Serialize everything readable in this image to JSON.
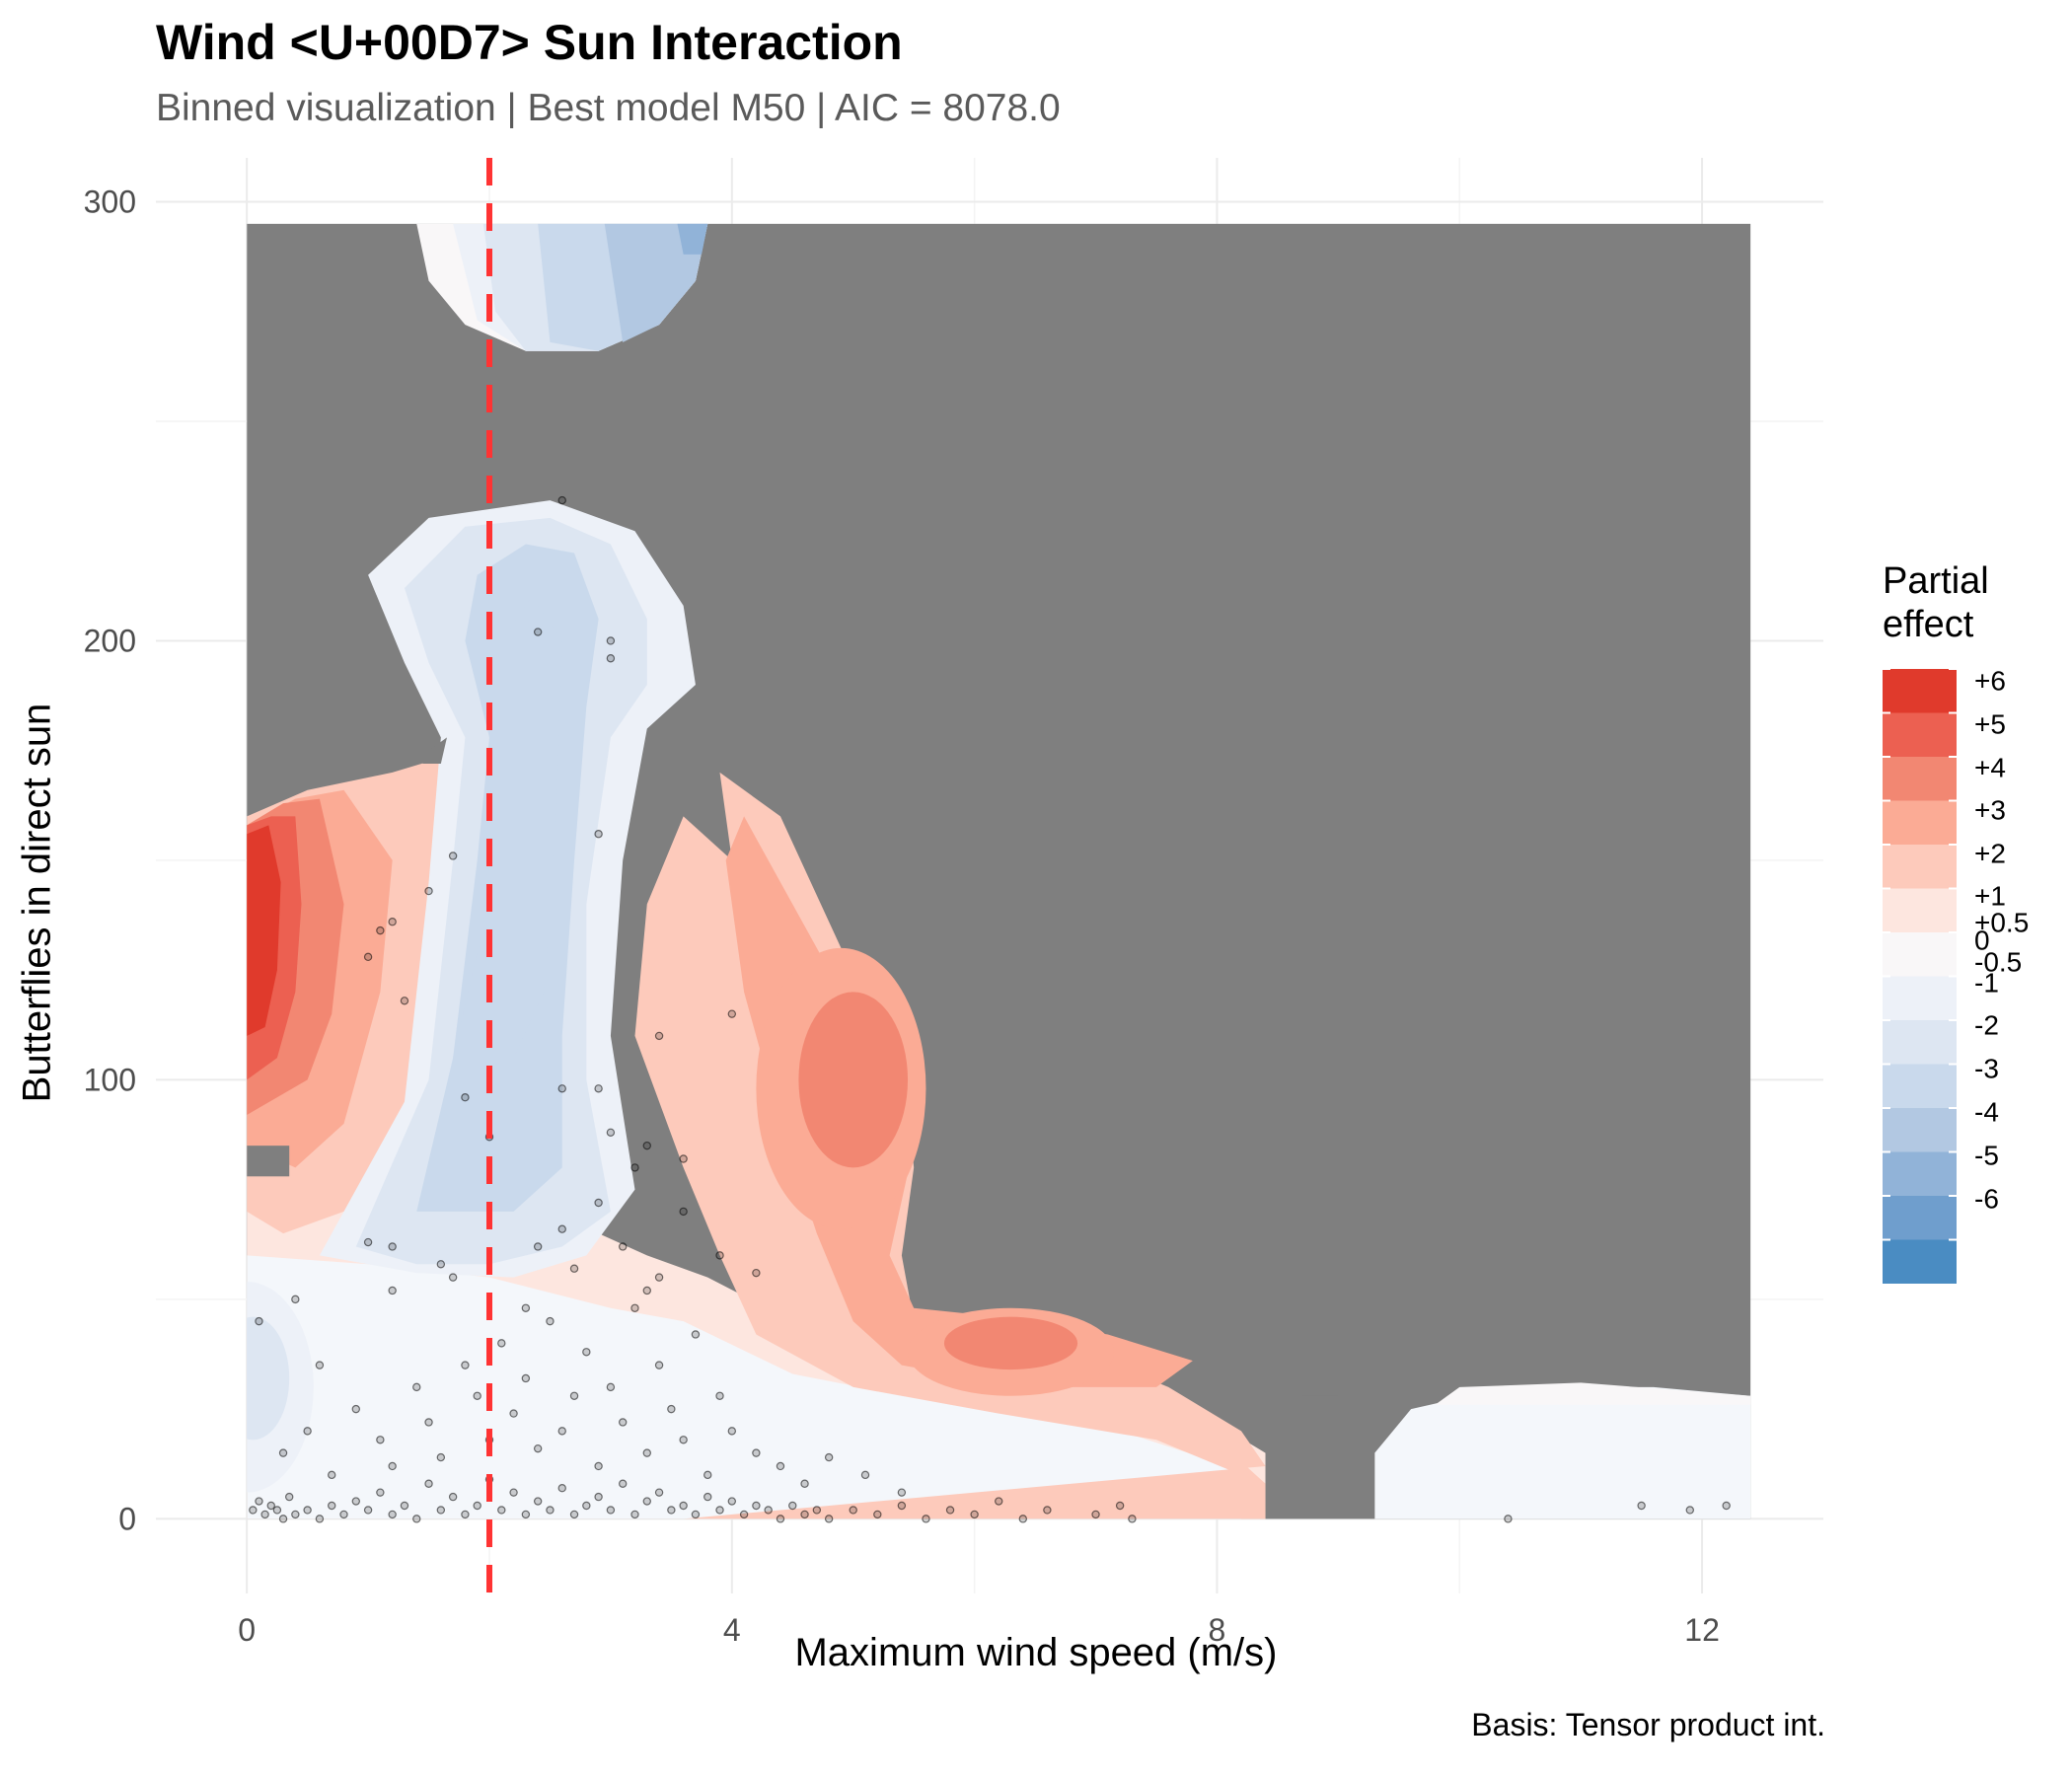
{
  "chart_data": {
    "type": "heatmap",
    "title": "Wind <U+00D7> Sun Interaction",
    "subtitle": "Binned visualization | Best model M50 | AIC = 8078.0",
    "caption": "Basis: Tensor product int.",
    "xlabel": "Maximum wind speed (m/s)",
    "ylabel": "Butterflies in direct sun",
    "xlim": [
      -0.75,
      13.0
    ],
    "ylim": [
      -17,
      310
    ],
    "xticks": [
      0,
      4,
      8,
      12
    ],
    "yticks": [
      0,
      100,
      200,
      300
    ],
    "x_minor_grid": [
      2,
      6,
      10
    ],
    "y_minor_grid": [
      50,
      150,
      250
    ],
    "grid": true,
    "reference_line": {
      "x": 2.0,
      "style": "dashed",
      "color": "#ff3333"
    },
    "surface_extent": {
      "x": [
        0,
        12.4
      ],
      "y": [
        0,
        295
      ]
    },
    "masked_color": "#7f7f7f",
    "legend": {
      "title": "Partial effect",
      "position": "right",
      "labels": [
        "+6",
        "+5",
        "+4",
        "+3",
        "+2",
        "+1",
        "+0.5",
        "0",
        "-0.5",
        "-1",
        "-2",
        "-3",
        "-4",
        "-5",
        "-6"
      ],
      "colors": [
        "#e03a2c",
        "#ec6051",
        "#f28772",
        "#fbab95",
        "#fdcabb",
        "#fde6df",
        "#f9f7f8",
        "#edf1f8",
        "#dde6f2",
        "#c9d9ec",
        "#b2c8e2",
        "#91b3d8",
        "#6f9ecd",
        "#4a8cc2"
      ]
    },
    "contour_regions": [
      {
        "shape": "ellipse",
        "x": 0.0,
        "y": 30,
        "rx": 0.55,
        "ry": 24,
        "level": -1
      },
      {
        "shape": "ellipse",
        "x": 2.6,
        "y": 185,
        "rx": 1.3,
        "ry": 90,
        "level": -1
      },
      {
        "shape": "ellipse",
        "x": 2.25,
        "y": 175,
        "rx": 0.55,
        "ry": 72,
        "level": -2
      },
      {
        "shape": "ellipse",
        "x": 2.7,
        "y": 285,
        "rx": 0.75,
        "ry": 22,
        "level": -2
      },
      {
        "shape": "ellipse",
        "x": 3.2,
        "y": 285,
        "rx": 0.35,
        "ry": 20,
        "level": -3
      },
      {
        "shape": "ellipse",
        "x": 3.6,
        "y": 290,
        "rx": 0.1,
        "ry": 8,
        "level": -4
      },
      {
        "shape": "ellipse",
        "x": 0.2,
        "y": 118,
        "rx": 0.55,
        "ry": 45,
        "level": 5
      },
      {
        "shape": "ellipse",
        "x": 0.05,
        "y": 125,
        "rx": 0.32,
        "ry": 30,
        "level": 6
      },
      {
        "shape": "ellipse",
        "x": 4.9,
        "y": 100,
        "rx": 0.6,
        "ry": 28,
        "level": 4
      },
      {
        "shape": "ellipse",
        "x": 6.3,
        "y": 38,
        "rx": 0.8,
        "ry": 10,
        "level": 3
      }
    ],
    "points": [
      [
        0.05,
        2
      ],
      [
        0.1,
        4
      ],
      [
        0.15,
        1
      ],
      [
        0.2,
        3
      ],
      [
        0.25,
        2
      ],
      [
        0.3,
        0
      ],
      [
        0.35,
        5
      ],
      [
        0.4,
        1
      ],
      [
        0.5,
        2
      ],
      [
        0.6,
        0
      ],
      [
        0.7,
        3
      ],
      [
        0.8,
        1
      ],
      [
        0.9,
        4
      ],
      [
        1.0,
        2
      ],
      [
        1.1,
        6
      ],
      [
        1.2,
        1
      ],
      [
        1.3,
        3
      ],
      [
        1.4,
        0
      ],
      [
        1.5,
        8
      ],
      [
        1.6,
        2
      ],
      [
        1.7,
        5
      ],
      [
        1.8,
        1
      ],
      [
        1.9,
        3
      ],
      [
        2.0,
        9
      ],
      [
        2.1,
        2
      ],
      [
        2.2,
        6
      ],
      [
        2.3,
        1
      ],
      [
        2.4,
        4
      ],
      [
        2.5,
        2
      ],
      [
        2.6,
        7
      ],
      [
        2.7,
        1
      ],
      [
        2.8,
        3
      ],
      [
        2.9,
        5
      ],
      [
        3.0,
        2
      ],
      [
        3.1,
        8
      ],
      [
        3.2,
        1
      ],
      [
        3.3,
        4
      ],
      [
        3.4,
        6
      ],
      [
        3.5,
        2
      ],
      [
        3.6,
        3
      ],
      [
        3.7,
        1
      ],
      [
        3.8,
        5
      ],
      [
        3.9,
        2
      ],
      [
        4.0,
        4
      ],
      [
        4.1,
        1
      ],
      [
        4.2,
        3
      ],
      [
        4.3,
        2
      ],
      [
        4.4,
        0
      ],
      [
        4.5,
        3
      ],
      [
        4.6,
        1
      ],
      [
        4.7,
        2
      ],
      [
        4.8,
        0
      ],
      [
        5.0,
        2
      ],
      [
        5.2,
        1
      ],
      [
        5.4,
        3
      ],
      [
        5.6,
        0
      ],
      [
        5.8,
        2
      ],
      [
        6.0,
        1
      ],
      [
        6.2,
        4
      ],
      [
        6.4,
        0
      ],
      [
        6.6,
        2
      ],
      [
        7.0,
        1
      ],
      [
        7.2,
        3
      ],
      [
        7.3,
        0
      ],
      [
        10.4,
        0
      ],
      [
        11.5,
        3
      ],
      [
        11.9,
        2
      ],
      [
        12.2,
        3
      ],
      [
        0.3,
        15
      ],
      [
        0.5,
        20
      ],
      [
        0.7,
        10
      ],
      [
        0.9,
        25
      ],
      [
        1.1,
        18
      ],
      [
        1.2,
        12
      ],
      [
        1.4,
        30
      ],
      [
        1.5,
        22
      ],
      [
        1.6,
        14
      ],
      [
        1.8,
        35
      ],
      [
        1.9,
        28
      ],
      [
        2.0,
        18
      ],
      [
        2.1,
        40
      ],
      [
        2.2,
        24
      ],
      [
        2.3,
        32
      ],
      [
        2.4,
        16
      ],
      [
        2.5,
        45
      ],
      [
        2.6,
        20
      ],
      [
        2.7,
        28
      ],
      [
        2.8,
        38
      ],
      [
        2.9,
        12
      ],
      [
        3.0,
        30
      ],
      [
        3.1,
        22
      ],
      [
        3.2,
        48
      ],
      [
        3.3,
        15
      ],
      [
        3.4,
        35
      ],
      [
        3.5,
        25
      ],
      [
        3.6,
        18
      ],
      [
        3.7,
        42
      ],
      [
        3.8,
        10
      ],
      [
        3.9,
        28
      ],
      [
        4.0,
        20
      ],
      [
        4.2,
        15
      ],
      [
        4.4,
        12
      ],
      [
        4.6,
        8
      ],
      [
        4.8,
        14
      ],
      [
        5.1,
        10
      ],
      [
        5.4,
        6
      ],
      [
        0.1,
        45
      ],
      [
        0.4,
        50
      ],
      [
        0.6,
        35
      ],
      [
        1.2,
        52
      ],
      [
        1.7,
        55
      ],
      [
        2.3,
        48
      ],
      [
        2.4,
        62
      ],
      [
        2.6,
        66
      ],
      [
        2.7,
        57
      ],
      [
        2.9,
        72
      ],
      [
        3.1,
        62
      ],
      [
        3.3,
        52
      ],
      [
        3.4,
        55
      ],
      [
        3.6,
        70
      ],
      [
        3.9,
        60
      ],
      [
        4.2,
        56
      ],
      [
        1.0,
        63
      ],
      [
        1.2,
        62
      ],
      [
        1.6,
        58
      ],
      [
        3.2,
        80
      ],
      [
        3.0,
        88
      ],
      [
        3.6,
        82
      ],
      [
        2.6,
        98
      ],
      [
        2.9,
        98
      ],
      [
        3.3,
        85
      ],
      [
        2.0,
        87
      ],
      [
        1.8,
        96
      ],
      [
        1.2,
        136
      ],
      [
        1.3,
        118
      ],
      [
        1.5,
        143
      ],
      [
        1.0,
        128
      ],
      [
        1.1,
        134
      ],
      [
        2.9,
        156
      ],
      [
        1.7,
        151
      ],
      [
        3.0,
        196
      ],
      [
        2.4,
        202
      ],
      [
        2.6,
        232
      ],
      [
        3.0,
        200
      ],
      [
        3.4,
        110
      ],
      [
        4.0,
        115
      ]
    ]
  }
}
